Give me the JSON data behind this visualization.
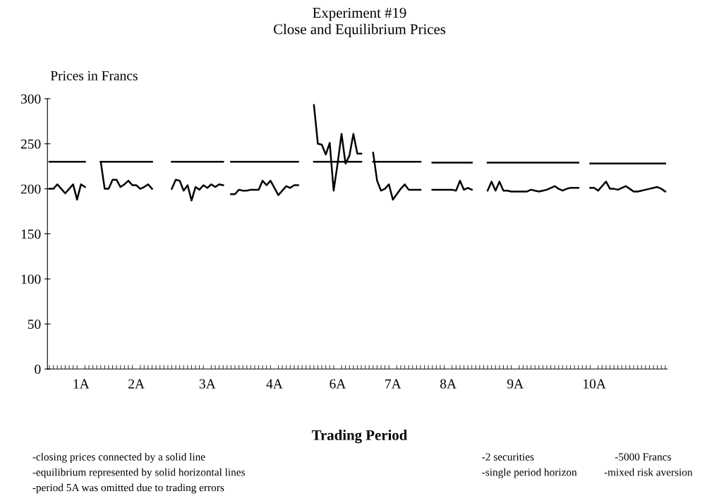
{
  "chart_data": {
    "type": "line",
    "title": "Experiment #19\nClose and Equilibrium Prices",
    "xlabel": "Trading Period",
    "ylabel": "Prices in Francs",
    "ylim": [
      0,
      300
    ],
    "yticks": [
      0,
      50,
      100,
      150,
      200,
      250,
      300
    ],
    "categories": [
      null,
      null,
      null,
      null,
      null,
      null,
      null,
      null,
      "1A",
      null,
      null,
      null,
      null,
      null,
      null,
      null,
      null,
      null,
      null,
      null,
      null,
      null,
      "2A",
      null,
      null,
      null,
      null,
      null,
      null,
      null,
      null,
      null,
      null,
      null,
      null,
      null,
      null,
      null,
      null,
      null,
      "3A",
      null,
      null,
      null,
      null,
      null,
      null,
      null,
      null,
      null,
      null,
      null,
      null,
      null,
      null,
      null,
      null,
      "4A",
      null,
      null,
      null,
      null,
      null,
      null,
      null,
      null,
      null,
      null,
      null,
      null,
      null,
      null,
      null,
      "6A",
      null,
      null,
      null,
      null,
      null,
      null,
      null,
      null,
      null,
      null,
      null,
      null,
      null,
      "7A",
      null,
      null,
      null,
      null,
      null,
      null,
      null,
      null,
      null,
      null,
      null,
      null,
      null,
      "8A",
      null,
      null,
      null,
      null,
      null,
      null,
      null,
      null,
      null,
      null,
      null,
      null,
      null,
      null,
      null,
      null,
      "9A",
      null,
      null,
      null,
      null,
      null,
      null,
      null,
      null,
      null,
      null,
      null,
      null,
      null,
      null,
      null,
      null,
      null,
      null,
      null,
      "10A",
      null,
      null,
      null,
      null,
      null,
      null,
      null,
      null,
      null,
      null,
      null,
      null,
      null,
      null,
      null,
      null,
      null,
      null
    ],
    "grid": false,
    "line_style": "solid",
    "series": [
      {
        "color": "#000000",
        "values": [
          200,
          200,
          205,
          200,
          195,
          200,
          205,
          188,
          205,
          202,
          null,
          null,
          null,
          230,
          200,
          200,
          210,
          210,
          202,
          205,
          209,
          204,
          204,
          200,
          202,
          205,
          200,
          null,
          null,
          null,
          null,
          200,
          210,
          209,
          198,
          204,
          187,
          202,
          199,
          204,
          201,
          205,
          202,
          205,
          204,
          null,
          194,
          194,
          199,
          198,
          198,
          199,
          199,
          199,
          209,
          204,
          209,
          201,
          193,
          198,
          203,
          201,
          204,
          204,
          null,
          null,
          null,
          293,
          250,
          249,
          238,
          251,
          198,
          228,
          261,
          228,
          237,
          261,
          239,
          239,
          null,
          null,
          240,
          209,
          198,
          200,
          205,
          188,
          194,
          200,
          205,
          199,
          199,
          199,
          199,
          null,
          null,
          199,
          199,
          199,
          199,
          199,
          199,
          198,
          209,
          199,
          201,
          199,
          null,
          null,
          null,
          198,
          208,
          198,
          208,
          198,
          198,
          197,
          197,
          197,
          197,
          197,
          199,
          198,
          197,
          198,
          199,
          201,
          203,
          200,
          198,
          200,
          201,
          201,
          201,
          null,
          null,
          201,
          201,
          198,
          203,
          208,
          200,
          200,
          199,
          201,
          203,
          200,
          197,
          197,
          198,
          199,
          200,
          201,
          202,
          200,
          197
        ]
      },
      {
        "color": "#000000",
        "values": [
          230,
          230,
          230,
          230,
          230,
          230,
          230,
          230,
          230,
          230,
          null,
          null,
          null,
          230,
          230,
          230,
          230,
          230,
          230,
          230,
          230,
          230,
          230,
          230,
          230,
          230,
          230,
          null,
          null,
          null,
          null,
          230,
          230,
          230,
          230,
          230,
          230,
          230,
          230,
          230,
          230,
          230,
          230,
          230,
          230,
          null,
          230,
          230,
          230,
          230,
          230,
          230,
          230,
          230,
          230,
          230,
          230,
          230,
          230,
          230,
          230,
          230,
          230,
          230,
          null,
          null,
          null,
          230,
          230,
          230,
          230,
          230,
          230,
          230,
          230,
          230,
          230,
          230,
          230,
          230,
          null,
          null,
          230,
          230,
          230,
          230,
          230,
          230,
          230,
          230,
          230,
          230,
          230,
          230,
          230,
          null,
          null,
          229,
          229,
          229,
          229,
          229,
          229,
          229,
          229,
          229,
          229,
          229,
          null,
          null,
          null,
          229,
          229,
          229,
          229,
          229,
          229,
          229,
          229,
          229,
          229,
          229,
          229,
          229,
          229,
          229,
          229,
          229,
          229,
          229,
          229,
          229,
          229,
          229,
          229,
          null,
          null,
          228,
          228,
          228,
          228,
          228,
          228,
          228,
          228,
          228,
          228,
          228,
          228,
          228,
          228,
          228,
          228,
          228,
          228,
          228,
          228
        ]
      }
    ],
    "annotations": [
      "-closing prices connected by a solid line",
      "-equilibrium represented by solid horizontal lines",
      "-period 5A was omitted due to trading errors",
      "-2 securities",
      "-5000 Francs",
      "-single period horizon",
      "-mixed risk aversion"
    ]
  }
}
